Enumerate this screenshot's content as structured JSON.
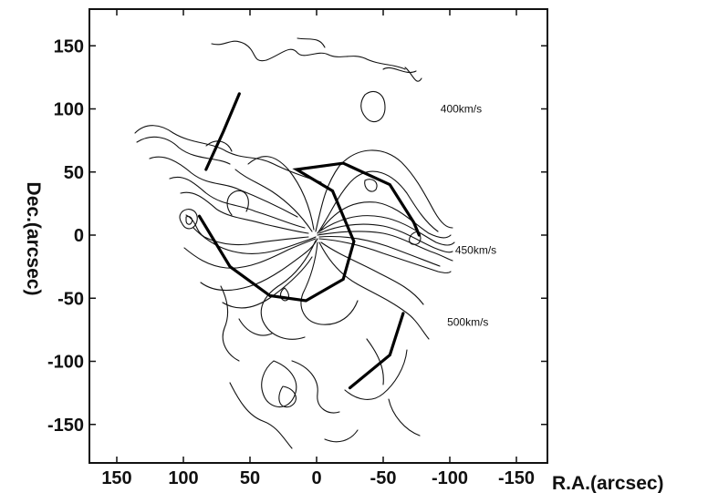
{
  "chart_data": {
    "type": "contour",
    "xlabel": "R.A.(arcsec)",
    "ylabel": "Dec.(arcsec)",
    "xlim": [
      180,
      -120
    ],
    "ylim": [
      -180,
      180
    ],
    "x_ticks": [
      150,
      100,
      50,
      0,
      -50,
      -100,
      -150
    ],
    "y_ticks": [
      150,
      100,
      50,
      0,
      -50,
      -100,
      -150
    ],
    "x_tick_labels": [
      "150",
      "100",
      "50",
      "0",
      "-50",
      "-100",
      "-150"
    ],
    "y_tick_labels": [
      "150",
      "100",
      "50",
      "0",
      "-50",
      "-100",
      "-150"
    ],
    "contour_labels": [
      {
        "text": "400km/s",
        "x": -93,
        "y": 100
      },
      {
        "text": "450km/s",
        "x": -104,
        "y": -12
      },
      {
        "text": "500km/s",
        "x": -98,
        "y": -69
      }
    ],
    "spiral_arm_segments": [
      [
        [
          83,
          52
        ],
        [
          70,
          82
        ],
        [
          58,
          112
        ]
      ],
      [
        [
          88,
          15
        ],
        [
          65,
          -25
        ],
        [
          35,
          -48
        ],
        [
          8,
          -52
        ],
        [
          -20,
          -35
        ],
        [
          -28,
          -5
        ],
        [
          -12,
          35
        ],
        [
          15,
          52
        ],
        [
          -20,
          57
        ],
        [
          -55,
          40
        ],
        [
          -73,
          10
        ],
        [
          -77,
          0
        ]
      ],
      [
        [
          -65,
          -62
        ],
        [
          -55,
          -95
        ],
        [
          -25,
          -121
        ]
      ]
    ]
  }
}
